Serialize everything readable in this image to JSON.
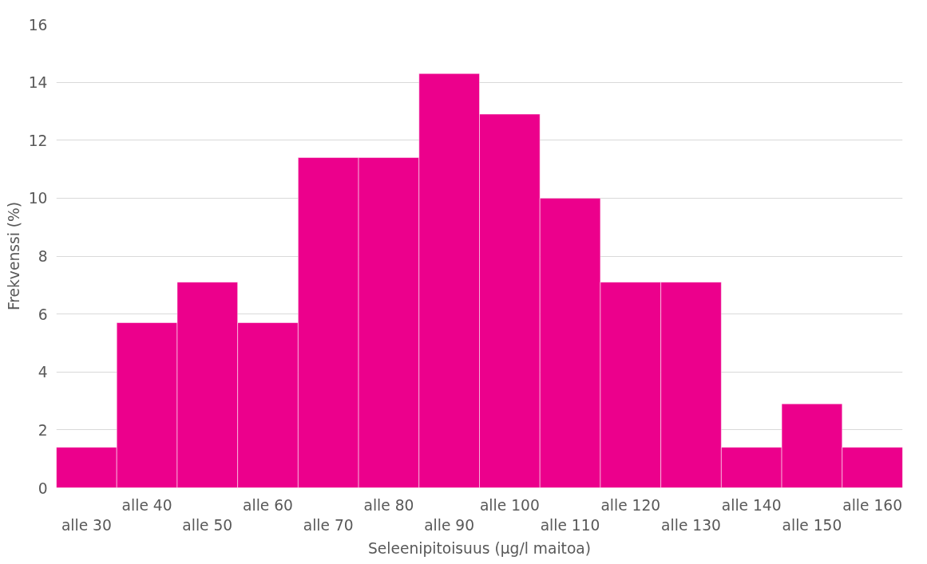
{
  "chart_data": {
    "type": "bar",
    "xlabel": "Seleenipitoisuus (µg/l maitoa)",
    "ylabel": "Frekvenssi (%)",
    "categories": [
      "alle 30",
      "alle 40",
      "alle 50",
      "alle 60",
      "alle 70",
      "alle 80",
      "alle 90",
      "alle 100",
      "alle 110",
      "alle 120",
      "alle 130",
      "alle 140",
      "alle 150",
      "alle 160"
    ],
    "values": [
      1.4,
      5.7,
      7.1,
      5.7,
      11.4,
      11.4,
      14.3,
      12.9,
      10,
      7.1,
      7.1,
      1.4,
      2.9,
      1.4
    ],
    "color": "#ec008c",
    "ylim": [
      0,
      16
    ],
    "yticks": [
      0,
      2,
      4,
      6,
      8,
      10,
      12,
      14,
      16
    ],
    "grid": "y"
  }
}
